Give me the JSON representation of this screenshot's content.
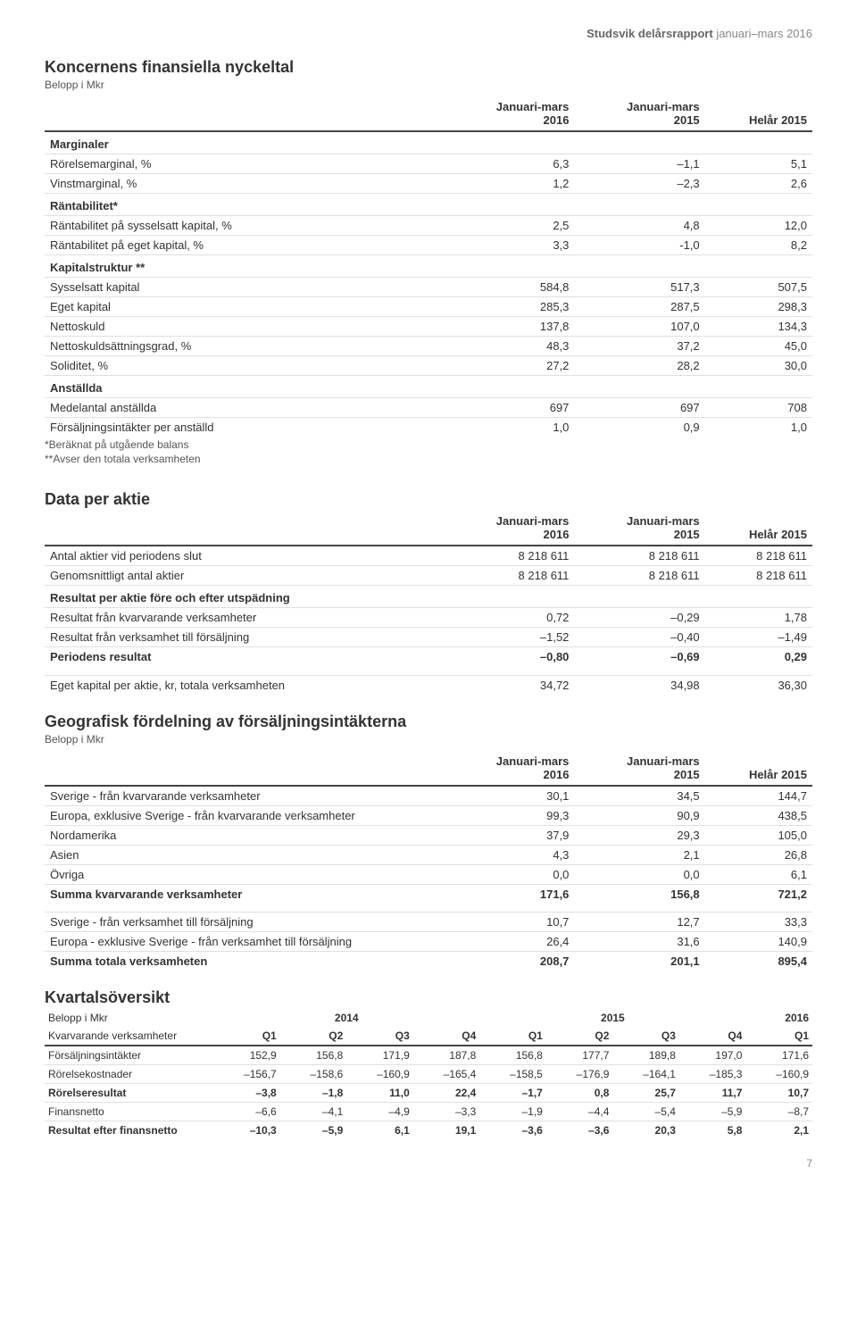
{
  "header": {
    "bold": "Studsvik delårsrapport",
    "rest": " januari–mars 2016"
  },
  "section1": {
    "title": "Koncernens finansiella nyckeltal",
    "subtitle": "Belopp i Mkr",
    "columns": [
      "",
      "Januari-mars 2016",
      "Januari-mars 2015",
      "Helår 2015"
    ],
    "groups": [
      {
        "header": "Marginaler",
        "rows": [
          {
            "label": "Rörelsemarginal, %",
            "v": [
              "6,3",
              "–1,1",
              "5,1"
            ]
          },
          {
            "label": "Vinstmarginal, %",
            "v": [
              "1,2",
              "–2,3",
              "2,6"
            ]
          }
        ]
      },
      {
        "header": "Räntabilitet*",
        "rows": [
          {
            "label": "Räntabilitet på sysselsatt kapital, %",
            "v": [
              "2,5",
              "4,8",
              "12,0"
            ]
          },
          {
            "label": "Räntabilitet på eget kapital, %",
            "v": [
              "3,3",
              "-1,0",
              "8,2"
            ]
          }
        ]
      },
      {
        "header": "Kapitalstruktur **",
        "rows": [
          {
            "label": "Sysselsatt kapital",
            "v": [
              "584,8",
              "517,3",
              "507,5"
            ]
          },
          {
            "label": "Eget kapital",
            "v": [
              "285,3",
              "287,5",
              "298,3"
            ]
          },
          {
            "label": "Nettoskuld",
            "v": [
              "137,8",
              "107,0",
              "134,3"
            ]
          },
          {
            "label": "Nettoskuldsättningsgrad, %",
            "v": [
              "48,3",
              "37,2",
              "45,0"
            ]
          },
          {
            "label": "Soliditet, %",
            "v": [
              "27,2",
              "28,2",
              "30,0"
            ]
          }
        ]
      },
      {
        "header": "Anställda",
        "rows": [
          {
            "label": "Medelantal anställda",
            "v": [
              "697",
              "697",
              "708"
            ]
          },
          {
            "label": "Försäljningsintäkter per anställd",
            "v": [
              "1,0",
              "0,9",
              "1,0"
            ]
          }
        ]
      }
    ],
    "footnotes": [
      "*Beräknat på utgående balans",
      "**Avser den totala verksamheten"
    ]
  },
  "section2": {
    "title": "Data per aktie",
    "columns": [
      "",
      "Januari-mars 2016",
      "Januari-mars 2015",
      "Helår 2015"
    ],
    "rows1": [
      {
        "label": "Antal aktier vid periodens slut",
        "v": [
          "8 218 611",
          "8 218 611",
          "8 218 611"
        ]
      },
      {
        "label": "Genomsnittligt antal aktier",
        "v": [
          "8 218 611",
          "8 218 611",
          "8 218 611"
        ]
      }
    ],
    "subheader": "Resultat per aktie före och efter utspädning",
    "rows2": [
      {
        "label": "Resultat från kvarvarande verksamheter",
        "v": [
          "0,72",
          "–0,29",
          "1,78"
        ]
      },
      {
        "label": "Resultat från verksamhet till försäljning",
        "v": [
          "–1,52",
          "–0,40",
          "–1,49"
        ]
      },
      {
        "label": "Periodens resultat",
        "v": [
          "–0,80",
          "–0,69",
          "0,29"
        ],
        "bold": true
      }
    ],
    "rows3": [
      {
        "label": "Eget kapital per aktie, kr, totala verksamheten",
        "v": [
          "34,72",
          "34,98",
          "36,30"
        ]
      }
    ]
  },
  "section3": {
    "title": "Geografisk fördelning av försäljningsintäkterna",
    "subtitle": "Belopp i Mkr",
    "columns": [
      "",
      "Januari-mars 2016",
      "Januari-mars 2015",
      "Helår 2015"
    ],
    "rows1": [
      {
        "label": "Sverige - från kvarvarande verksamheter",
        "v": [
          "30,1",
          "34,5",
          "144,7"
        ]
      },
      {
        "label": "Europa, exklusive Sverige - från kvarvarande verksamheter",
        "v": [
          "99,3",
          "90,9",
          "438,5"
        ]
      },
      {
        "label": "Nordamerika",
        "v": [
          "37,9",
          "29,3",
          "105,0"
        ]
      },
      {
        "label": "Asien",
        "v": [
          "4,3",
          "2,1",
          "26,8"
        ]
      },
      {
        "label": "Övriga",
        "v": [
          "0,0",
          "0,0",
          "6,1"
        ]
      },
      {
        "label": "Summa kvarvarande verksamheter",
        "v": [
          "171,6",
          "156,8",
          "721,2"
        ],
        "bold": true
      }
    ],
    "rows2": [
      {
        "label": "Sverige - från verksamhet till försäljning",
        "v": [
          "10,7",
          "12,7",
          "33,3"
        ]
      },
      {
        "label": "Europa - exklusive Sverige - från verksamhet till försäljning",
        "v": [
          "26,4",
          "31,6",
          "140,9"
        ]
      },
      {
        "label": "Summa totala verksamheten",
        "v": [
          "208,7",
          "201,1",
          "895,4"
        ],
        "bold": true
      }
    ]
  },
  "section4": {
    "title": "Kvartalsöversikt",
    "subtitle": "Belopp i Mkr",
    "subtitle2": "Kvarvarande verksamheter",
    "years": [
      "2014",
      "2015",
      "2016"
    ],
    "quarters": [
      "Q1",
      "Q2",
      "Q3",
      "Q4",
      "Q1",
      "Q2",
      "Q3",
      "Q4",
      "Q1"
    ],
    "rows": [
      {
        "label": "Försäljningsintäkter",
        "v": [
          "152,9",
          "156,8",
          "171,9",
          "187,8",
          "156,8",
          "177,7",
          "189,8",
          "197,0",
          "171,6"
        ]
      },
      {
        "label": "Rörelsekostnader",
        "v": [
          "–156,7",
          "–158,6",
          "–160,9",
          "–165,4",
          "–158,5",
          "–176,9",
          "–164,1",
          "–185,3",
          "–160,9"
        ]
      },
      {
        "label": "Rörelseresultat",
        "v": [
          "–3,8",
          "–1,8",
          "11,0",
          "22,4",
          "–1,7",
          "0,8",
          "25,7",
          "11,7",
          "10,7"
        ],
        "bold": true
      },
      {
        "label": "Finansnetto",
        "v": [
          "–6,6",
          "–4,1",
          "–4,9",
          "–3,3",
          "–1,9",
          "–4,4",
          "–5,4",
          "–5,9",
          "–8,7"
        ]
      },
      {
        "label": "Resultat efter finansnetto",
        "v": [
          "–10,3",
          "–5,9",
          "6,1",
          "19,1",
          "–3,6",
          "–3,6",
          "20,3",
          "5,8",
          "2,1"
        ],
        "bold": true
      }
    ]
  },
  "page_number": "7"
}
